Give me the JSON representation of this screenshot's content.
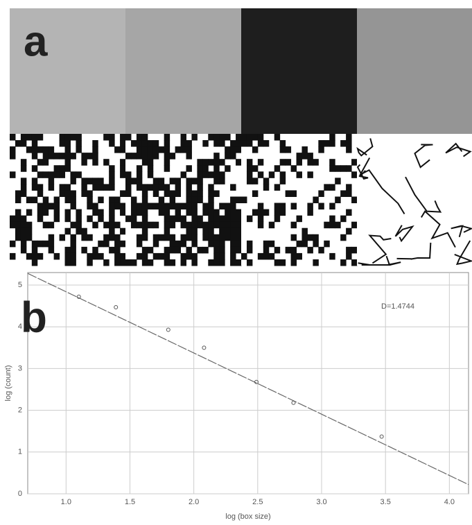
{
  "panel_labels": [
    "a",
    "b"
  ],
  "chart_data": {
    "type": "scatter",
    "x_label": "log (box size)",
    "y_label": "log (count)",
    "annotation": "D=1.4744",
    "x": [
      1.1,
      1.39,
      1.8,
      2.08,
      2.49,
      2.78,
      3.47
    ],
    "values": [
      4.72,
      4.47,
      3.93,
      3.5,
      2.68,
      2.18,
      1.37
    ],
    "color": "#555555",
    "fit_line": {
      "x": [
        0.7,
        4.15
      ],
      "values": [
        5.28,
        0.22
      ]
    },
    "xlim": [
      0.7,
      4.15
    ],
    "ylim": [
      0,
      5.3
    ],
    "xticks": [
      {
        "value": 1,
        "label": "1.0"
      },
      {
        "value": 1.5,
        "label": "1.5"
      },
      {
        "value": 2,
        "label": "2.0"
      },
      {
        "value": 2.5,
        "label": "2.5"
      },
      {
        "value": 3,
        "label": "3.0"
      },
      {
        "value": 3.5,
        "label": "3.5"
      },
      {
        "value": 4,
        "label": "4.0"
      }
    ],
    "yticks": [
      0,
      1,
      2,
      3,
      4,
      5
    ],
    "grid": true
  }
}
